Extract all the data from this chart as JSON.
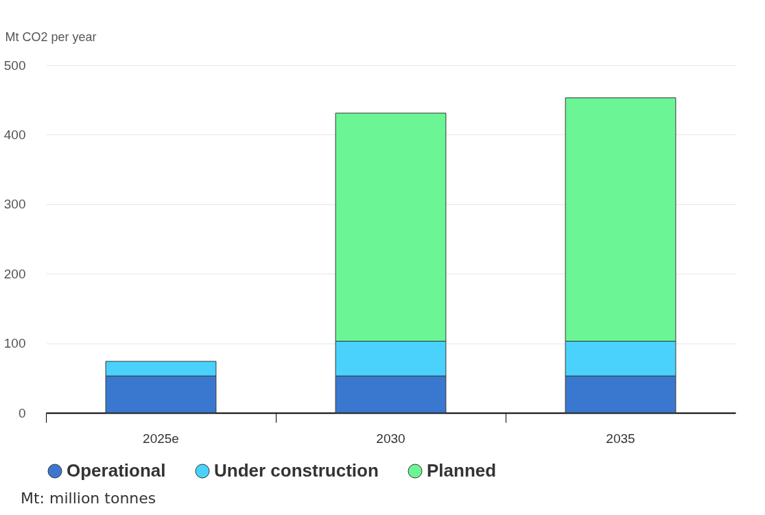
{
  "chart_data": {
    "type": "bar",
    "stacked": true,
    "ylabel": "Mt CO2 per year",
    "categories": [
      "2025e",
      "2030",
      "2035"
    ],
    "series": [
      {
        "name": "Operational",
        "color": "#3a78d0",
        "values": [
          53,
          53,
          53
        ]
      },
      {
        "name": "Under construction",
        "color": "#4ad2fc",
        "values": [
          21,
          50,
          50
        ]
      },
      {
        "name": "Planned",
        "color": "#6bf595",
        "values": [
          null,
          328,
          350
        ]
      }
    ],
    "ylim": [
      0,
      500
    ],
    "yticks": [
      0,
      100,
      200,
      300,
      400,
      500
    ],
    "grid": "y",
    "legend": "bottom",
    "marker": "circle",
    "annotations": [
      "Mt: million tonnes"
    ]
  }
}
